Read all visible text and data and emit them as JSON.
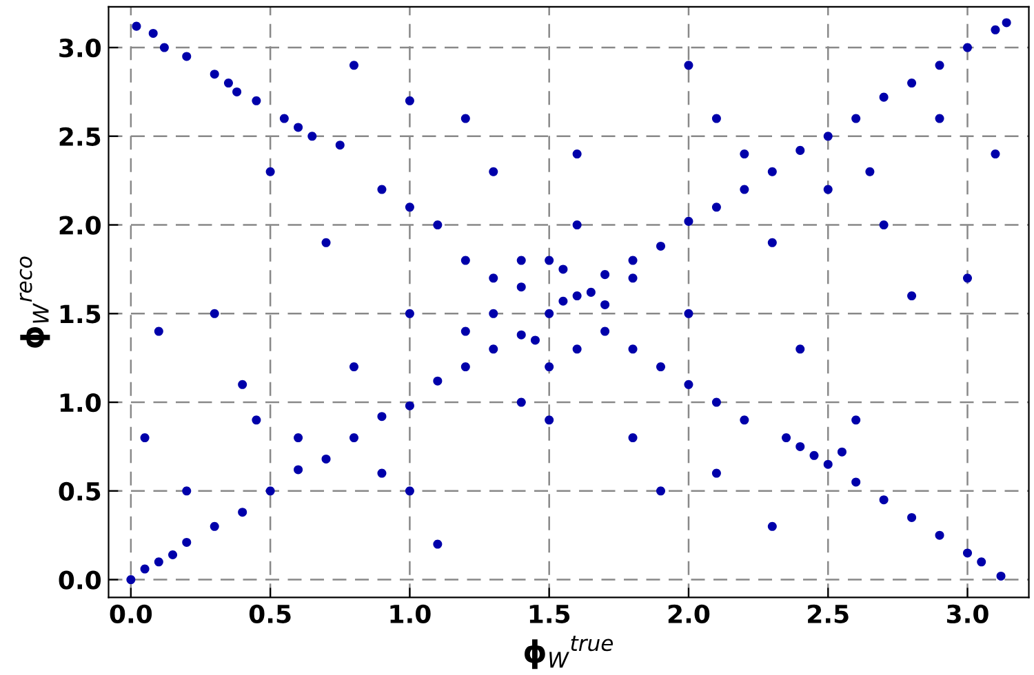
{
  "chart_data": {
    "type": "scatter",
    "xlabel": "ϕ$_{W}$$^{true}$",
    "ylabel": "ϕ$_{W}$$^{reco}$",
    "xlim": [
      -0.08,
      3.22
    ],
    "ylim": [
      -0.1,
      3.23
    ],
    "xticks": [
      {
        "value": 0,
        "label": "0.0"
      },
      {
        "value": 0.5,
        "label": "0.5"
      },
      {
        "value": 1,
        "label": "1.0"
      },
      {
        "value": 1.5,
        "label": "1.5"
      },
      {
        "value": 2,
        "label": "2.0"
      },
      {
        "value": 2.5,
        "label": "2.5"
      },
      {
        "value": 3,
        "label": "3.0"
      }
    ],
    "yticks": [
      {
        "value": 0,
        "label": "0.0"
      },
      {
        "value": 0.5,
        "label": "0.5"
      },
      {
        "value": 1,
        "label": "1.0"
      },
      {
        "value": 1.5,
        "label": "1.5"
      },
      {
        "value": 2,
        "label": "2.0"
      },
      {
        "value": 2.5,
        "label": "2.5"
      },
      {
        "value": 3,
        "label": "3.0"
      }
    ],
    "grid": true,
    "marker": "circle",
    "series": [
      {
        "color": "#0000aa",
        "x": [
          0.0,
          0.05,
          0.1,
          0.15,
          0.2,
          0.3,
          0.4,
          0.5,
          0.6,
          0.7,
          0.8,
          0.9,
          1.0,
          1.1,
          1.2,
          1.3,
          1.4,
          1.5,
          1.55,
          1.6,
          1.65,
          1.7,
          1.8,
          1.9,
          2.0,
          2.1,
          2.2,
          2.3,
          2.4,
          2.5,
          2.6,
          2.7,
          2.8,
          2.9,
          3.0,
          3.1,
          3.14,
          0.02,
          0.08,
          0.12,
          0.2,
          0.3,
          0.38,
          0.45,
          0.55,
          0.65,
          0.75,
          0.35,
          0.6,
          2.4,
          2.5,
          2.45,
          2.6,
          2.7,
          2.8,
          2.9,
          3.0,
          3.05,
          3.12,
          2.55,
          2.35,
          1.2,
          1.3,
          1.4,
          1.7,
          1.8,
          1.9,
          1.1,
          1.0,
          2.0,
          2.1,
          1.4,
          1.6,
          1.5,
          1.5,
          1.3,
          1.7,
          1.45,
          1.55,
          0.9,
          2.2,
          1.2,
          1.8,
          1.6,
          1.4,
          1.0,
          2.0,
          0.8,
          2.3,
          0.5,
          2.6,
          1.0,
          2.1,
          0.3,
          2.8,
          0.6,
          2.5,
          1.2,
          1.9,
          0.1,
          3.0,
          0.05,
          3.1,
          0.2,
          2.9,
          1.1,
          2.0,
          0.7,
          2.4,
          0.4,
          2.7,
          1.3,
          1.8,
          0.9,
          2.2,
          1.6,
          1.5,
          0.8,
          2.3,
          1.0,
          2.1,
          0.45,
          2.65
        ],
        "values": [
          0.0,
          0.06,
          0.1,
          0.14,
          0.21,
          0.3,
          0.38,
          0.5,
          0.62,
          0.68,
          0.8,
          0.92,
          0.98,
          1.12,
          1.2,
          1.3,
          1.38,
          1.5,
          1.57,
          1.6,
          1.62,
          1.72,
          1.8,
          1.88,
          2.02,
          2.1,
          2.2,
          2.3,
          2.42,
          2.5,
          2.6,
          2.72,
          2.8,
          2.9,
          3.0,
          3.1,
          3.14,
          3.12,
          3.08,
          3.0,
          2.95,
          2.85,
          2.75,
          2.7,
          2.6,
          2.5,
          2.45,
          2.8,
          2.55,
          0.75,
          0.65,
          0.7,
          0.55,
          0.45,
          0.35,
          0.25,
          0.15,
          0.1,
          0.02,
          0.72,
          0.8,
          1.8,
          1.7,
          1.65,
          1.4,
          1.3,
          1.2,
          2.0,
          2.1,
          1.1,
          1.0,
          1.8,
          1.3,
          1.2,
          1.8,
          1.5,
          1.55,
          1.35,
          1.75,
          2.2,
          0.9,
          1.4,
          1.7,
          2.0,
          1.0,
          1.5,
          1.5,
          1.2,
          1.9,
          2.3,
          0.9,
          0.5,
          2.6,
          1.5,
          1.6,
          0.8,
          2.2,
          2.6,
          0.5,
          1.4,
          1.7,
          0.8,
          2.4,
          0.5,
          2.6,
          0.2,
          2.9,
          1.9,
          1.3,
          1.1,
          2.0,
          2.3,
          0.8,
          0.6,
          2.4,
          2.4,
          0.9,
          2.9,
          0.3,
          2.7,
          0.6,
          0.9,
          2.3
        ]
      }
    ]
  }
}
